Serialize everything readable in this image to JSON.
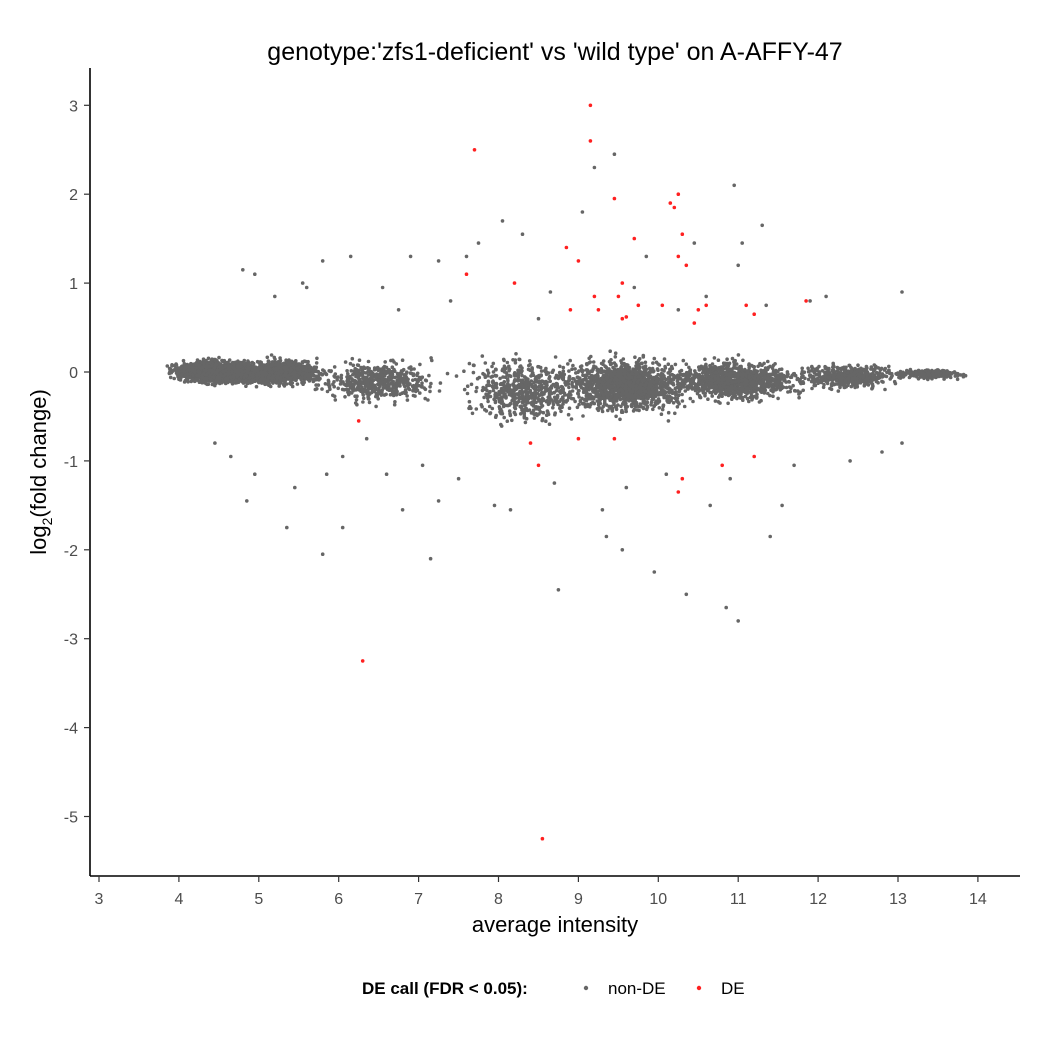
{
  "chart_data": {
    "type": "scatter",
    "title": "genotype:'zfs1-deficient' vs 'wild type' on A-AFFY-47",
    "xlabel": "average intensity",
    "ylabel_main": "log",
    "ylabel_sub": "2",
    "ylabel_rest": "(fold change)",
    "xlim": [
      2.9,
      15.5
    ],
    "ylim": [
      -5.7,
      3.4
    ],
    "x_ticks": [
      3,
      4,
      5,
      6,
      7,
      8,
      9,
      10,
      11,
      12,
      13,
      14
    ],
    "x_tick_labels": [
      "3",
      "4",
      "5",
      "6",
      "7",
      "8",
      "9",
      "10",
      "11",
      "12",
      "13",
      "14"
    ],
    "y_ticks": [
      3,
      2,
      1,
      0,
      -1,
      -2,
      -3,
      -4,
      -5
    ],
    "y_tick_labels": [
      "3",
      "2",
      "1",
      "0",
      "-1",
      "-2",
      "-3",
      "-4",
      "-5"
    ],
    "grid": false,
    "legend": {
      "placement": "bottom",
      "title": "DE call (FDR < 0.05):",
      "items": [
        {
          "label": "non-DE",
          "color": "#666666"
        },
        {
          "label": "DE",
          "color": "#ff2020"
        }
      ]
    },
    "series": [
      {
        "name": "non-DE",
        "color": "#666666",
        "points": [
          [
            9.45,
            2.45
          ],
          [
            9.2,
            2.3
          ],
          [
            10.95,
            2.1
          ],
          [
            8.05,
            1.7
          ],
          [
            9.05,
            1.8
          ],
          [
            11.3,
            1.65
          ],
          [
            11.05,
            1.45
          ],
          [
            7.75,
            1.45
          ],
          [
            8.3,
            1.55
          ],
          [
            6.9,
            1.3
          ],
          [
            6.15,
            1.3
          ],
          [
            5.8,
            1.25
          ],
          [
            4.8,
            1.15
          ],
          [
            4.95,
            1.1
          ],
          [
            7.25,
            1.25
          ],
          [
            7.6,
            1.3
          ],
          [
            9.85,
            1.3
          ],
          [
            10.45,
            1.45
          ],
          [
            11.0,
            1.2
          ],
          [
            12.1,
            0.85
          ],
          [
            13.05,
            0.9
          ],
          [
            5.55,
            1.0
          ],
          [
            6.55,
            0.95
          ],
          [
            8.65,
            0.9
          ],
          [
            9.7,
            0.95
          ],
          [
            10.6,
            0.85
          ],
          [
            11.9,
            0.8
          ],
          [
            6.35,
            -0.75
          ],
          [
            6.05,
            -0.95
          ],
          [
            7.05,
            -1.05
          ],
          [
            5.85,
            -1.15
          ],
          [
            4.85,
            -1.45
          ],
          [
            5.45,
            -1.3
          ],
          [
            7.25,
            -1.45
          ],
          [
            6.8,
            -1.55
          ],
          [
            7.95,
            -1.5
          ],
          [
            8.15,
            -1.55
          ],
          [
            9.3,
            -1.55
          ],
          [
            9.35,
            -1.85
          ],
          [
            9.55,
            -2.0
          ],
          [
            5.35,
            -1.75
          ],
          [
            6.05,
            -1.75
          ],
          [
            5.8,
            -2.05
          ],
          [
            7.15,
            -2.1
          ],
          [
            9.95,
            -2.25
          ],
          [
            8.75,
            -2.45
          ],
          [
            10.35,
            -2.5
          ],
          [
            10.85,
            -2.65
          ],
          [
            11.0,
            -2.8
          ],
          [
            11.4,
            -1.85
          ],
          [
            11.55,
            -1.5
          ],
          [
            10.65,
            -1.5
          ],
          [
            4.45,
            -0.8
          ],
          [
            4.65,
            -0.95
          ],
          [
            4.95,
            -1.15
          ],
          [
            6.6,
            -1.15
          ],
          [
            7.5,
            -1.2
          ],
          [
            8.7,
            -1.25
          ],
          [
            9.6,
            -1.3
          ],
          [
            10.1,
            -1.15
          ],
          [
            10.9,
            -1.2
          ],
          [
            12.4,
            -1.0
          ],
          [
            12.8,
            -0.9
          ],
          [
            13.05,
            -0.8
          ],
          [
            11.7,
            -1.05
          ],
          [
            5.2,
            0.85
          ],
          [
            5.6,
            0.95
          ],
          [
            6.75,
            0.7
          ],
          [
            7.4,
            0.8
          ],
          [
            8.5,
            0.6
          ],
          [
            10.25,
            0.7
          ],
          [
            11.35,
            0.75
          ]
        ]
      },
      {
        "name": "DE",
        "color": "#ff2020",
        "points": [
          [
            9.15,
            3.0
          ],
          [
            9.15,
            2.6
          ],
          [
            7.7,
            2.5
          ],
          [
            9.45,
            1.95
          ],
          [
            10.25,
            2.0
          ],
          [
            10.15,
            1.9
          ],
          [
            10.2,
            1.85
          ],
          [
            10.3,
            1.55
          ],
          [
            9.7,
            1.5
          ],
          [
            8.85,
            1.4
          ],
          [
            9.0,
            1.25
          ],
          [
            10.25,
            1.3
          ],
          [
            10.35,
            1.2
          ],
          [
            7.6,
            1.1
          ],
          [
            8.2,
            1.0
          ],
          [
            9.55,
            1.0
          ],
          [
            9.2,
            0.85
          ],
          [
            9.25,
            0.7
          ],
          [
            9.5,
            0.85
          ],
          [
            9.75,
            0.75
          ],
          [
            10.05,
            0.75
          ],
          [
            10.5,
            0.7
          ],
          [
            10.6,
            0.75
          ],
          [
            11.1,
            0.75
          ],
          [
            11.2,
            0.65
          ],
          [
            11.85,
            0.8
          ],
          [
            8.9,
            0.7
          ],
          [
            9.55,
            0.6
          ],
          [
            9.6,
            0.62
          ],
          [
            10.45,
            0.55
          ],
          [
            6.25,
            -0.55
          ],
          [
            8.4,
            -0.8
          ],
          [
            9.0,
            -0.75
          ],
          [
            9.45,
            -0.75
          ],
          [
            8.5,
            -1.05
          ],
          [
            10.8,
            -1.05
          ],
          [
            11.2,
            -0.95
          ],
          [
            10.3,
            -1.2
          ],
          [
            10.25,
            -1.35
          ],
          [
            6.3,
            -3.25
          ],
          [
            8.55,
            -5.25
          ]
        ]
      }
    ]
  }
}
